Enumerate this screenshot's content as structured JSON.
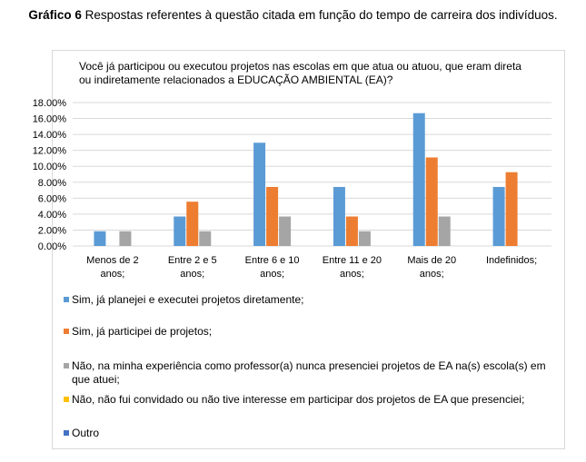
{
  "caption": {
    "bold": "Gráfico 6",
    "text": " Respostas referentes à questão citada em função do tempo de carreira dos indivíduos."
  },
  "chart_data": {
    "type": "bar",
    "title": "Você já participou ou executou projetos nas escolas em que atua ou atuou, que eram direta ou indiretamente relacionados a EDUCAÇÃO AMBIENTAL (EA)?",
    "categories": [
      [
        "Menos de 2",
        "anos;"
      ],
      [
        "Entre 2 e 5",
        "anos;"
      ],
      [
        "Entre 6 e 10",
        "anos;"
      ],
      [
        "Entre 11 e 20",
        "anos;"
      ],
      [
        "Mais de 20",
        "anos;"
      ],
      [
        "Indefinidos;"
      ]
    ],
    "ylim": [
      0,
      18
    ],
    "yticks": [
      "0.00%",
      "2.00%",
      "4.00%",
      "6.00%",
      "8.00%",
      "10.00%",
      "12.00%",
      "14.00%",
      "16.00%",
      "18.00%"
    ],
    "grid": true,
    "legend_position": "bottom",
    "series": [
      {
        "name": "Sim, já planejei e executei projetos diretamente;",
        "color": "#5B9BD5",
        "values": [
          1.85,
          3.7,
          12.96,
          7.41,
          16.67,
          7.41
        ]
      },
      {
        "name": "Sim, já participei de projetos;",
        "color": "#ED7D31",
        "values": [
          0,
          5.56,
          7.41,
          3.7,
          11.11,
          9.26
        ]
      },
      {
        "name": "Não, na minha experiência como professor(a) nunca presenciei projetos de EA na(s) escola(s) em que atuei;",
        "color": "#A5A5A5",
        "values": [
          1.85,
          1.85,
          3.7,
          1.85,
          3.7,
          0
        ]
      },
      {
        "name": "Não, não fui convidado ou não tive interesse em participar dos projetos de EA que presenciei;",
        "color": "#FFC000",
        "values": [
          0,
          0,
          0,
          0,
          0,
          0
        ]
      },
      {
        "name": "Outro",
        "color": "#4472C4",
        "values": [
          0,
          0,
          0,
          0,
          0,
          0
        ]
      }
    ]
  }
}
